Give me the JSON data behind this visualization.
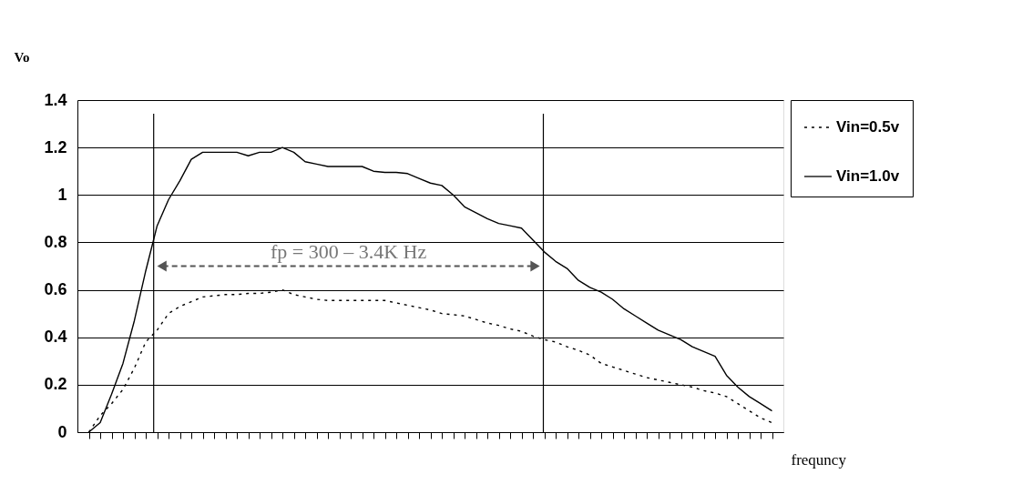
{
  "chart_data": {
    "type": "line",
    "xlabel": "frequncy",
    "ylabel": "Vo",
    "categories": [
      null,
      null,
      null,
      null,
      null,
      null,
      null,
      null,
      null,
      null,
      null,
      null,
      null,
      null,
      null,
      null,
      null,
      null,
      null,
      null,
      null,
      null,
      null,
      null,
      null,
      null,
      null,
      null,
      null,
      null,
      null,
      null,
      null,
      null,
      null,
      null,
      null,
      null,
      null,
      null,
      null,
      null,
      null,
      null,
      null,
      null,
      null,
      null,
      null,
      null,
      null,
      null,
      null,
      null,
      null,
      null,
      null,
      null,
      null,
      null,
      null
    ],
    "series": [
      {
        "name": "Vin=0.5v",
        "color": "#000000",
        "line_style": "dotted",
        "values": [
          0.0,
          0.07,
          0.12,
          0.18,
          0.27,
          0.38,
          0.43,
          0.5,
          0.53,
          0.55,
          0.57,
          0.575,
          0.58,
          0.58,
          0.585,
          0.585,
          0.59,
          0.6,
          0.58,
          0.57,
          0.56,
          0.555,
          0.555,
          0.555,
          0.555,
          0.555,
          0.555,
          0.545,
          0.535,
          0.525,
          0.515,
          0.5,
          0.495,
          0.49,
          0.475,
          0.46,
          0.45,
          0.435,
          0.425,
          0.405,
          0.39,
          0.38,
          0.36,
          0.345,
          0.325,
          0.29,
          0.275,
          0.26,
          0.245,
          0.23,
          0.22,
          0.21,
          0.2,
          0.19,
          0.175,
          0.165,
          0.15,
          0.12,
          0.09,
          0.06,
          0.04
        ]
      },
      {
        "name": "Vin=1.0v",
        "color": "#000000",
        "line_style": "solid",
        "values": [
          0.0,
          0.04,
          0.16,
          0.29,
          0.47,
          0.68,
          0.87,
          0.98,
          1.06,
          1.15,
          1.18,
          1.18,
          1.18,
          1.18,
          1.165,
          1.18,
          1.18,
          1.2,
          1.18,
          1.14,
          1.13,
          1.12,
          1.12,
          1.12,
          1.12,
          1.1,
          1.095,
          1.095,
          1.09,
          1.07,
          1.05,
          1.04,
          1.0,
          0.95,
          0.925,
          0.9,
          0.88,
          0.87,
          0.86,
          0.81,
          0.76,
          0.72,
          0.69,
          0.64,
          0.61,
          0.59,
          0.56,
          0.52,
          0.49,
          0.46,
          0.43,
          0.41,
          0.39,
          0.36,
          0.34,
          0.32,
          0.24,
          0.19,
          0.15,
          0.12,
          0.09
        ]
      }
    ],
    "ylim": [
      0,
      1.4
    ],
    "yticks": [
      {
        "value": 0,
        "label": "0"
      },
      0.2,
      0.4,
      0.6,
      0.8,
      {
        "value": 1,
        "label": "1"
      },
      1.2,
      1.4
    ],
    "grid": "y",
    "legend": "right",
    "tick_labels": "y",
    "annotations": [
      "fp = 300 – 3.4K Hz"
    ]
  }
}
